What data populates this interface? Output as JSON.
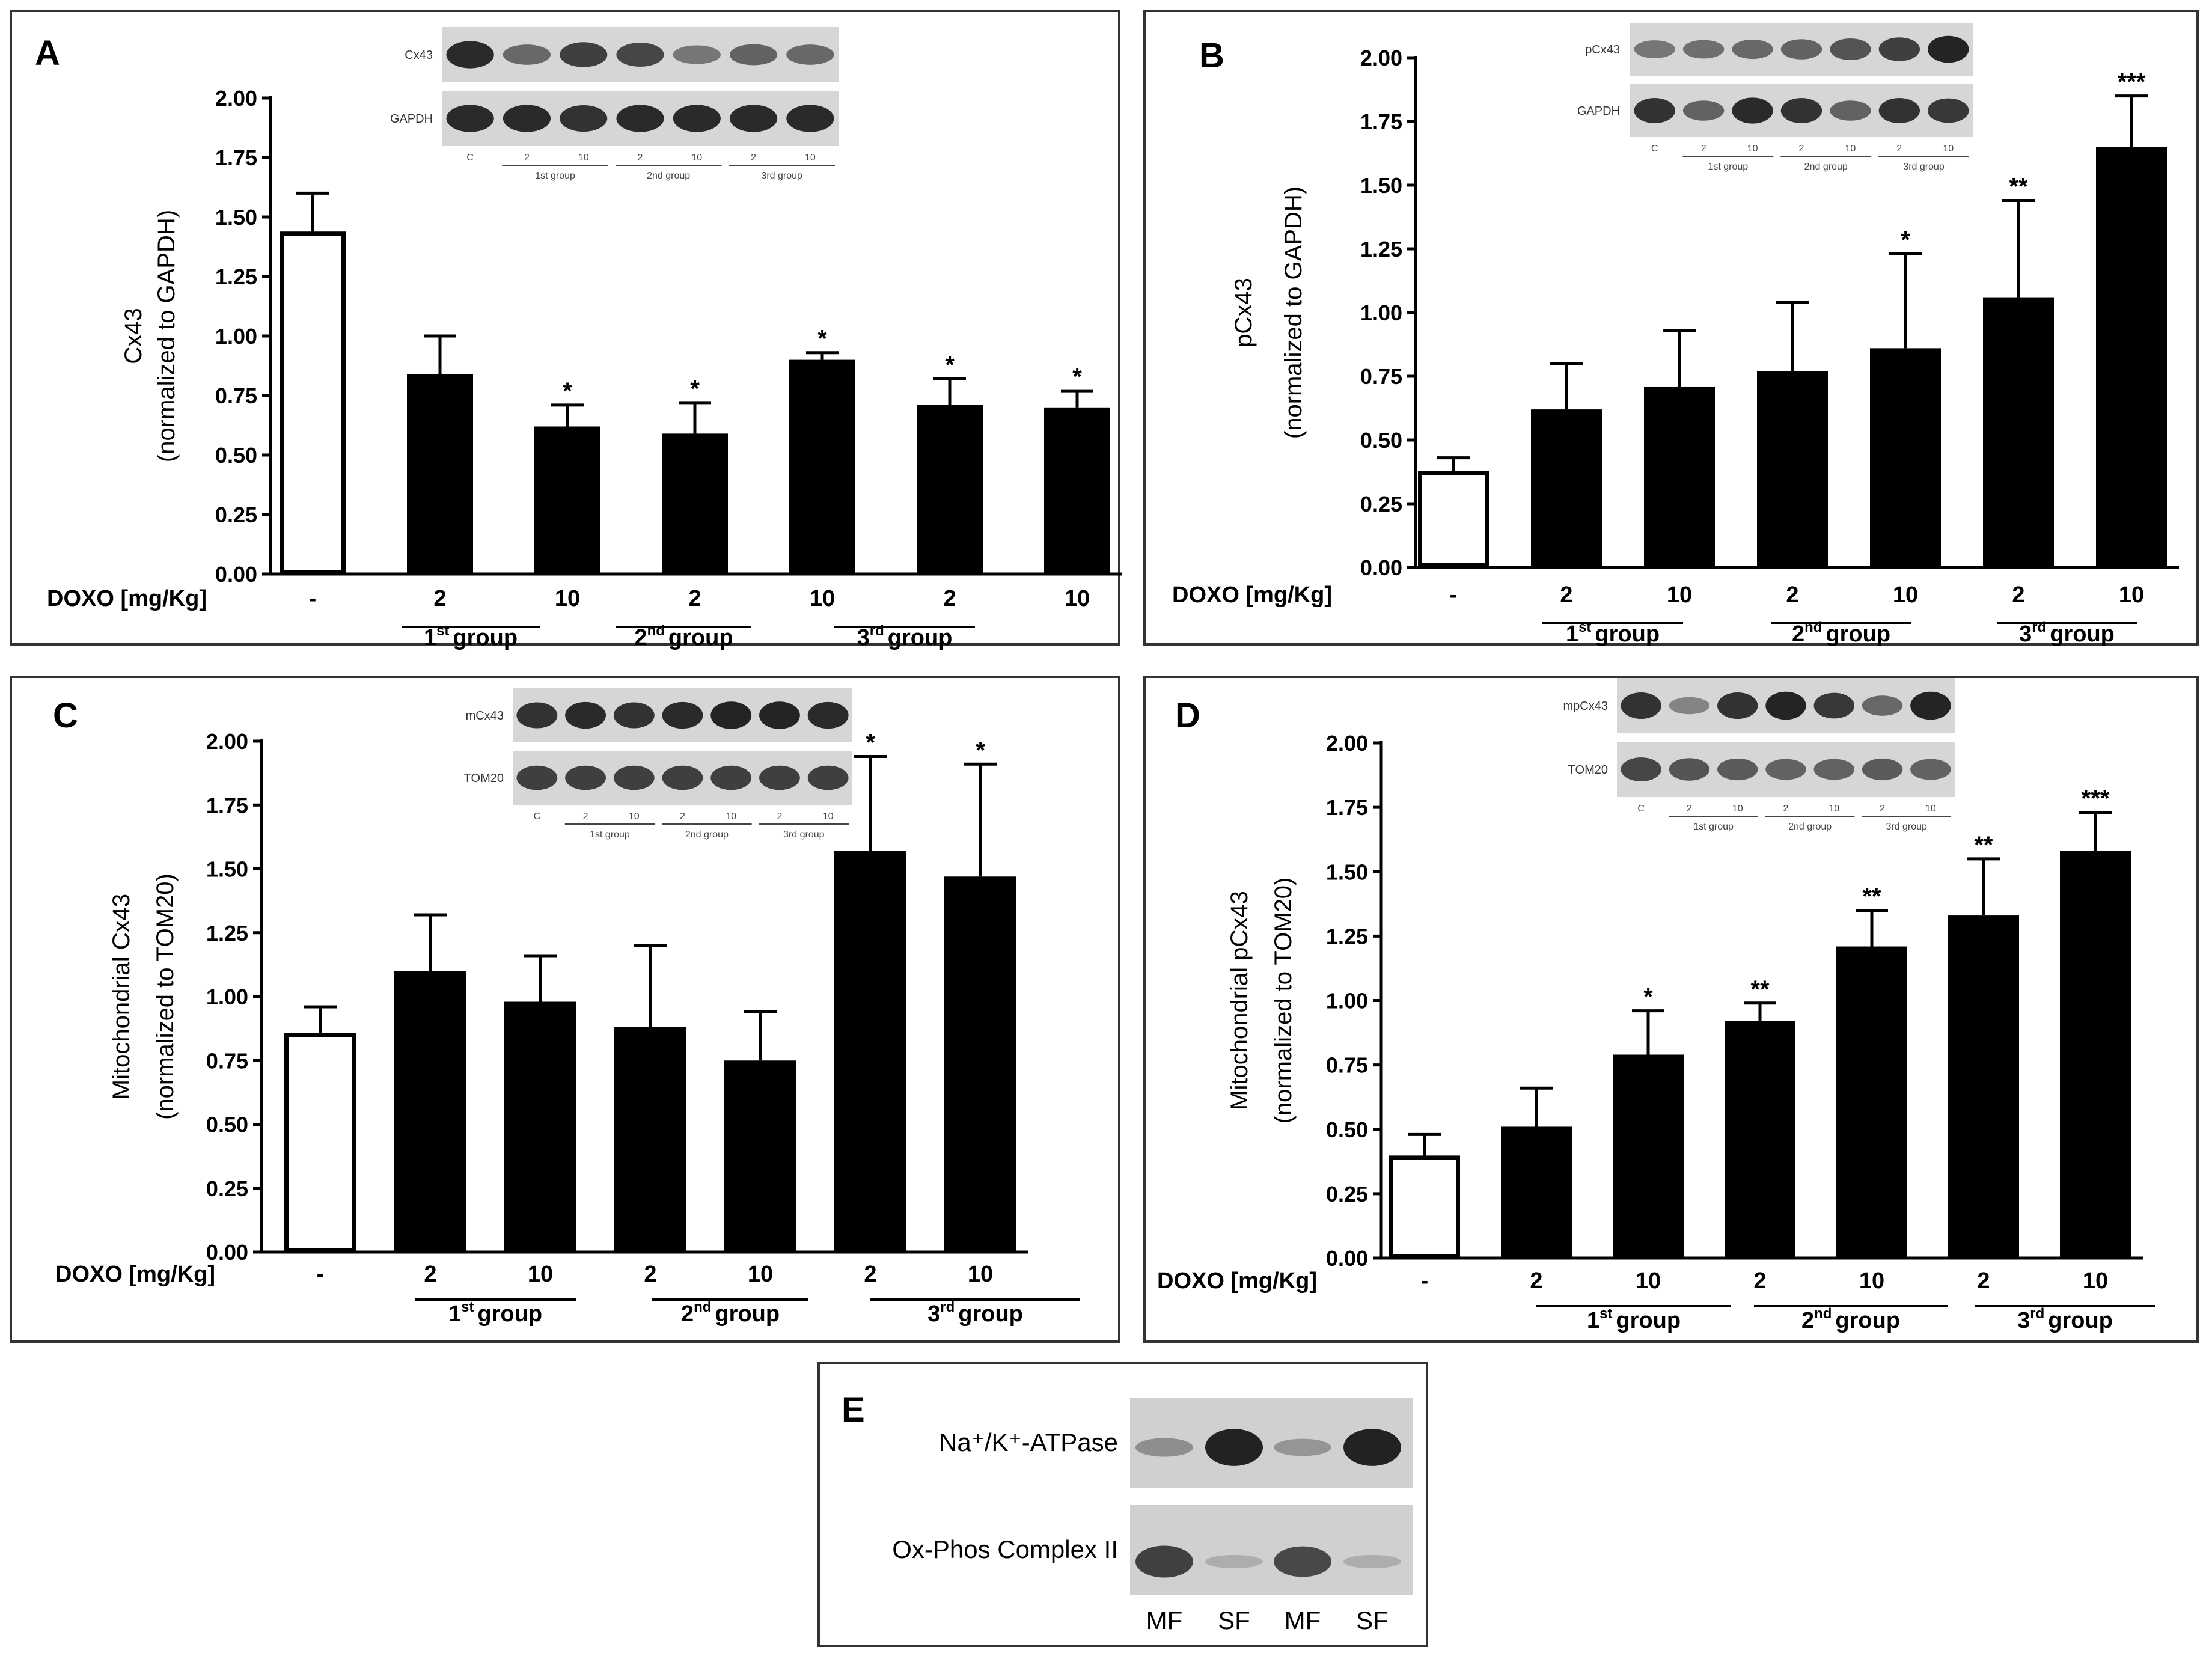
{
  "colors": {
    "ink": "#000000",
    "open_bar": "#ffffff",
    "blot_bg": "#d6d6d6",
    "band": "#1c1c1c"
  },
  "panels": [
    {
      "letter": "A",
      "ylabel_main": "Cx43",
      "ylabel_sub": "(normalized to GAPDH)",
      "x_title": "DOXO [mg/Kg]",
      "blot_labels": [
        "Cx43",
        "GAPDH"
      ],
      "blot_lanes": [
        "C",
        "2",
        "10",
        "2",
        "10",
        "2",
        "10"
      ],
      "blot_groups": [
        "1st group",
        "2nd group",
        "3rd group"
      ]
    },
    {
      "letter": "B",
      "ylabel_main": "pCx43",
      "ylabel_sub": "(normalized to GAPDH)",
      "x_title": "DOXO [mg/Kg]",
      "blot_labels": [
        "pCx43",
        "GAPDH"
      ],
      "blot_lanes": [
        "C",
        "2",
        "10",
        "2",
        "10",
        "2",
        "10"
      ],
      "blot_groups": [
        "1st group",
        "2nd group",
        "3rd group"
      ]
    },
    {
      "letter": "C",
      "ylabel_main": "Mitochondrial Cx43",
      "ylabel_sub": "(normalized to TOM20)",
      "x_title": "DOXO [mg/Kg]",
      "blot_labels": [
        "mCx43",
        "TOM20"
      ],
      "blot_lanes": [
        "C",
        "2",
        "10",
        "2",
        "10",
        "2",
        "10"
      ],
      "blot_groups": [
        "1st group",
        "2nd group",
        "3rd group"
      ]
    },
    {
      "letter": "D",
      "ylabel_main": "Mitochondrial pCx43",
      "ylabel_sub": "(normalized to TOM20)",
      "x_title": "DOXO [mg/Kg]",
      "blot_labels": [
        "mpCx43",
        "TOM20"
      ],
      "blot_lanes": [
        "C",
        "2",
        "10",
        "2",
        "10",
        "2",
        "10"
      ],
      "blot_groups": [
        "1st group",
        "2nd group",
        "3rd group"
      ]
    }
  ],
  "chart_data": [
    {
      "panel": "A",
      "type": "bar",
      "ylabel": "Cx43 (normalized to GAPDH)",
      "xlabel": "DOXO [mg/Kg]",
      "ylim": [
        0,
        2.0
      ],
      "yticks": [
        "0.00",
        "0.25",
        "0.50",
        "0.75",
        "1.00",
        "1.25",
        "1.50",
        "1.75",
        "2.00"
      ],
      "categories": [
        "-",
        "2",
        "10",
        "2",
        "10",
        "2",
        "10"
      ],
      "groups": [
        {
          "base": "1",
          "sup": "st",
          "label": "group"
        },
        {
          "base": "2",
          "sup": "nd",
          "label": "group"
        },
        {
          "base": "3",
          "sup": "rd",
          "label": "group"
        }
      ],
      "values": [
        1.43,
        0.84,
        0.62,
        0.59,
        0.9,
        0.71,
        0.7
      ],
      "errors": [
        0.17,
        0.16,
        0.09,
        0.13,
        0.03,
        0.11,
        0.07
      ],
      "significance": [
        "",
        "",
        "*",
        "*",
        "*",
        "*",
        "*"
      ]
    },
    {
      "panel": "B",
      "type": "bar",
      "ylabel": "pCx43 (normalized to GAPDH)",
      "xlabel": "DOXO [mg/Kg]",
      "ylim": [
        0,
        2.0
      ],
      "yticks": [
        "0.00",
        "0.25",
        "0.50",
        "0.75",
        "1.00",
        "1.25",
        "1.50",
        "1.75",
        "2.00"
      ],
      "categories": [
        "-",
        "2",
        "10",
        "2",
        "10",
        "2",
        "10"
      ],
      "groups": [
        {
          "base": "1",
          "sup": "st",
          "label": "group"
        },
        {
          "base": "2",
          "sup": "nd",
          "label": "group"
        },
        {
          "base": "3",
          "sup": "rd",
          "label": "group"
        }
      ],
      "values": [
        0.37,
        0.62,
        0.71,
        0.77,
        0.86,
        1.06,
        1.65
      ],
      "errors": [
        0.06,
        0.18,
        0.22,
        0.27,
        0.37,
        0.38,
        0.2
      ],
      "significance": [
        "",
        "",
        "",
        "",
        "*",
        "**",
        "***"
      ]
    },
    {
      "panel": "C",
      "type": "bar",
      "ylabel": "Mitochondrial Cx43 (normalized to TOM20)",
      "xlabel": "DOXO [mg/Kg]",
      "ylim": [
        0,
        2.0
      ],
      "yticks": [
        "0.00",
        "0.25",
        "0.50",
        "0.75",
        "1.00",
        "1.25",
        "1.50",
        "1.75",
        "2.00"
      ],
      "categories": [
        "-",
        "2",
        "10",
        "2",
        "10",
        "2",
        "10"
      ],
      "groups": [
        {
          "base": "1",
          "sup": "st",
          "label": "group"
        },
        {
          "base": "2",
          "sup": "nd",
          "label": "group"
        },
        {
          "base": "3",
          "sup": "rd",
          "label": "group"
        }
      ],
      "values": [
        0.85,
        1.1,
        0.98,
        0.88,
        0.75,
        1.57,
        1.47
      ],
      "errors": [
        0.11,
        0.22,
        0.18,
        0.32,
        0.19,
        0.37,
        0.44
      ],
      "significance": [
        "",
        "",
        "",
        "",
        "",
        "*",
        "*"
      ]
    },
    {
      "panel": "D",
      "type": "bar",
      "ylabel": "Mitochondrial pCx43 (normalized to TOM20)",
      "xlabel": "DOXO [mg/Kg]",
      "ylim": [
        0,
        2.0
      ],
      "yticks": [
        "0.00",
        "0.25",
        "0.50",
        "0.75",
        "1.00",
        "1.25",
        "1.50",
        "1.75",
        "2.00"
      ],
      "categories": [
        "-",
        "2",
        "10",
        "2",
        "10",
        "2",
        "10"
      ],
      "groups": [
        {
          "base": "1",
          "sup": "st",
          "label": "group"
        },
        {
          "base": "2",
          "sup": "nd",
          "label": "group"
        },
        {
          "base": "3",
          "sup": "rd",
          "label": "group"
        }
      ],
      "values": [
        0.39,
        0.51,
        0.79,
        0.92,
        1.21,
        1.33,
        1.58
      ],
      "errors": [
        0.09,
        0.15,
        0.17,
        0.07,
        0.14,
        0.22,
        0.15
      ],
      "significance": [
        "",
        "",
        "*",
        "**",
        "**",
        "**",
        "***"
      ]
    }
  ],
  "panel_e": {
    "letter": "E",
    "row_labels": [
      "Na⁺/K⁺-ATPase",
      "Ox-Phos Complex II"
    ],
    "lane_labels": [
      "MF",
      "SF",
      "MF",
      "SF"
    ]
  }
}
